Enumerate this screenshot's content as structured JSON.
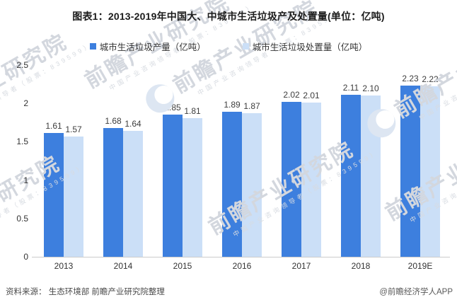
{
  "title": "图表1：2013-2019年中国大、中城市生活垃圾产及处置量(单位：亿吨)",
  "legend": [
    {
      "label": "城市生活垃圾产量（亿吨）",
      "color": "#3d7fde"
    },
    {
      "label": "城市生活垃圾处置量（亿吨）",
      "color": "#cbdff7"
    }
  ],
  "chart_data": {
    "type": "bar",
    "title": "图表1：2013-2019年中国大、中城市生活垃圾产及处置量(单位：亿吨)",
    "unit": "亿吨",
    "categories": [
      "2013",
      "2014",
      "2015",
      "2016",
      "2017",
      "2018",
      "2019E"
    ],
    "series": [
      {
        "name": "城市生活垃圾产量（亿吨）",
        "color": "#3d7fde",
        "values": [
          1.61,
          1.68,
          1.85,
          1.89,
          2.02,
          2.11,
          2.23
        ]
      },
      {
        "name": "城市生活垃圾处置量（亿吨）",
        "color": "#cbdff7",
        "values": [
          1.57,
          1.64,
          1.81,
          1.87,
          2.01,
          2.1,
          2.22
        ]
      }
    ],
    "ylim": [
      0,
      2.5
    ],
    "yticks": [
      0,
      0.5,
      1,
      1.5,
      2,
      2.5
    ],
    "grid": false,
    "legend_position": "top",
    "value_labels": true,
    "value_label_decimals": 2
  },
  "footer": {
    "source": "资料来源：  生态环境部 前瞻产业研究院整理",
    "credit": "@前瞻经济学人APP"
  },
  "watermark": {
    "big": "前瞻产业研究院",
    "small": "中国产业咨询领导者（股票：839599）"
  },
  "colors": {
    "axis_line": "#cccccc",
    "tick_text": "#333333",
    "value_text": "#3d3d3d"
  }
}
